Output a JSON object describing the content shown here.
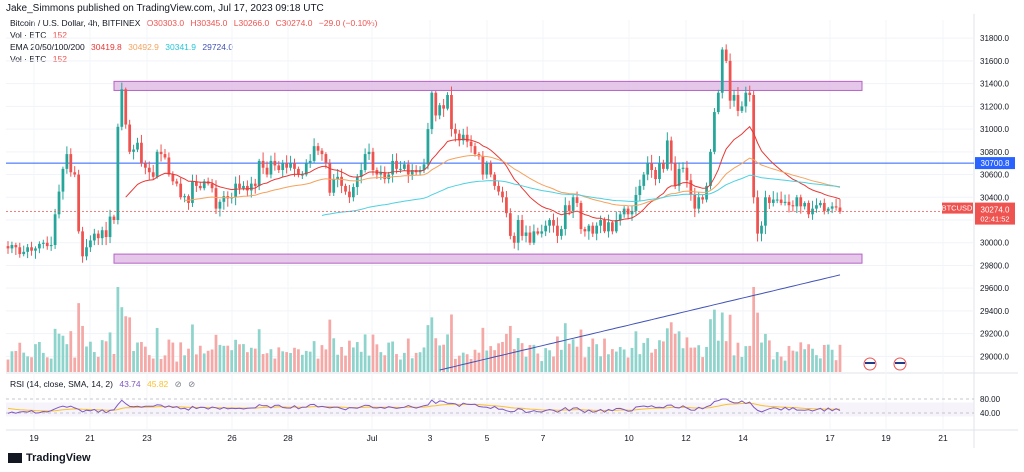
{
  "header": {
    "publisher": "Jake_Simmons published on TradingView.com, Jul 17, 2023 09:18 UTC"
  },
  "legend": {
    "symbol": "Bitcoin / U.S. Dollar, 4h, BITFINEX",
    "open": "O30303.0",
    "high": "H30345.0",
    "low": "L30266.0",
    "close": "C30274.0",
    "change": "−29.0 (−0.10%)",
    "vol1_label": "Vol · BTC",
    "vol1_value": "152",
    "ema_label": "EMA 20/50/100/200",
    "ema20": "30419.8",
    "ema50": "30492.9",
    "ema100": "30341.9",
    "ema200": "29724.0",
    "vol2_label": "Vol · BTC",
    "vol2_value": "152",
    "rsi_label": "RSI (14, close, SMA, 14, 2)",
    "rsi_value": "43.74",
    "rsi_sma": "45.82"
  },
  "colors": {
    "up": "#26a69a",
    "down": "#ef5350",
    "ema20": "#e53935",
    "ema50": "#f5a25d",
    "ema100": "#4dd0e1",
    "ema200": "#3f51b5",
    "rsi": "#7e57c2",
    "rsi_sma": "#fbc02d",
    "zone_fill": "#e1bee7",
    "zone_stroke": "#ab47bc",
    "hline": "#2962ff"
  },
  "price_tag": {
    "symbol": "BTCUSD",
    "price": "30274.0",
    "countdown": "02:41:52"
  },
  "hline_tag": "30700.8",
  "footer": {
    "brand": "TradingView"
  },
  "chart_data": {
    "type": "candlestick",
    "price_axis": {
      "ticks": [
        "31800.0",
        "31600.0",
        "31400.0",
        "31200.0",
        "31000.0",
        "30800.0",
        "30600.0",
        "30400.0",
        "30200.0",
        "30000.0",
        "29800.0",
        "29600.0",
        "29400.0",
        "29200.0",
        "29000.0"
      ],
      "ylim": [
        28880,
        31960
      ]
    },
    "rsi_axis": {
      "ticks": [
        "80.00",
        "40.00"
      ],
      "ylim": [
        20,
        100
      ]
    },
    "x_axis": {
      "ticks": [
        "19",
        "21",
        "23",
        "26",
        "28",
        "Jul",
        "3",
        "5",
        "7",
        "10",
        "12",
        "14",
        "17",
        "19",
        "21"
      ]
    },
    "resistance_zone": [
      31340,
      31420
    ],
    "support_zone": [
      29820,
      29900
    ],
    "horizontal_line": 30700.8,
    "closes": [
      29950,
      29980,
      29960,
      29900,
      29920,
      29960,
      29930,
      29950,
      29990,
      30000,
      29970,
      29980,
      30250,
      30450,
      30650,
      30780,
      30620,
      30600,
      30100,
      29880,
      29960,
      30020,
      30080,
      30040,
      30110,
      30050,
      30230,
      30200,
      31020,
      31350,
      31040,
      30800,
      30820,
      30880,
      30700,
      30660,
      30620,
      30580,
      30800,
      30780,
      30750,
      30600,
      30540,
      30520,
      30400,
      30410,
      30350,
      30540,
      30500,
      30480,
      30540,
      30520,
      30480,
      30300,
      30360,
      30410,
      30390,
      30400,
      30520,
      30480,
      30500,
      30460,
      30520,
      30500,
      30720,
      30660,
      30600,
      30720,
      30680,
      30640,
      30700,
      30660,
      30700,
      30650,
      30600,
      30600,
      30700,
      30720,
      30850,
      30810,
      30780,
      30700,
      30440,
      30560,
      30580,
      30500,
      30450,
      30400,
      30490,
      30580,
      30640,
      30780,
      30800,
      30640,
      30600,
      30620,
      30560,
      30600,
      30720,
      30650,
      30650,
      30690,
      30600,
      30640,
      30620,
      30640,
      30690,
      31000,
      31320,
      31120,
      31210,
      31180,
      31300,
      31000,
      30960,
      30900,
      30950,
      30890,
      30850,
      30780,
      30760,
      30600,
      30700,
      30600,
      30500,
      30450,
      30400,
      30260,
      30060,
      30000,
      30200,
      30060,
      30090,
      30000,
      30100,
      30080,
      30100,
      30150,
      30200,
      30150,
      30060,
      30120,
      30330,
      30280,
      30400,
      30350,
      30120,
      30100,
      30150,
      30080,
      30150,
      30200,
      30100,
      30180,
      30100,
      30200,
      30250,
      30300,
      30250,
      30280,
      30420,
      30500,
      30600,
      30700,
      30640,
      30560,
      30700,
      30650,
      30900,
      30700,
      30500,
      30650,
      30660,
      30550,
      30420,
      30300,
      30400,
      30380,
      30500,
      30800,
      31150,
      31320,
      31700,
      31600,
      31250,
      31300,
      31160,
      31200,
      31320,
      31300,
      30400,
      30080,
      30150,
      30400,
      30350,
      30380,
      30380,
      30350,
      30360,
      30330,
      30320,
      30400,
      30320,
      30350,
      30250,
      30300,
      30330,
      30350,
      30280,
      30300,
      30320,
      30310,
      30274
    ]
  }
}
